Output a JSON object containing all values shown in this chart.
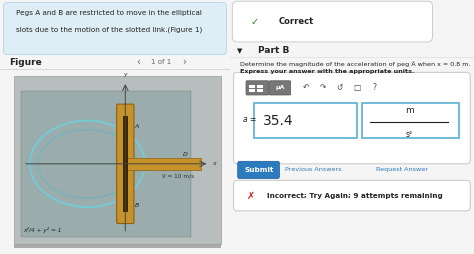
{
  "problem_text_line1": "Pegs A and B are restricted to move in the elliptical",
  "problem_text_line2": "slots due to the motion of the slotted link.(Figure 1)",
  "figure_label": "Figure",
  "figure_nav": "1 of 1",
  "correct_text": "Correct",
  "part_b_text": "Part B",
  "part_b_desc": "Determine the magnitude of the acceleration of peg Ä when x = 0.8 m.",
  "express_text": "Express your answer with the appropriate units.",
  "answer_value": "35.4",
  "unit_numerator": "m",
  "unit_denominator": "s²",
  "submit_text": "Submit",
  "prev_answers_text": "Previous Answers",
  "request_answer_text": "Request Answer",
  "incorrect_text": "Incorrect; Try Again; 9 attempts remaining",
  "velocity_label": "v̅ = 10 m/s",
  "ellipse_eq": "x²/4 + y² = 1",
  "toolbar_symbols": [
    "↺",
    "↻",
    "↺",
    "■",
    "?"
  ],
  "left_bg": "#f0f0f0",
  "right_bg": "#f5f5f5",
  "problem_box_bg": "#ddeef6",
  "problem_box_edge": "#b8d4e8",
  "figure_box_bg": "#b8bebe",
  "figure_inner_bg": "#9aacac",
  "ellipse_color": "#78c8d2",
  "rod_color": "#c8922a",
  "rod_edge": "#8b6010",
  "slot_dark": "#3a2800",
  "correct_box_bg": "#ffffff",
  "correct_box_edge": "#cccccc",
  "check_color": "#2a7a2a",
  "part_b_bg": "#f0f0f0",
  "answer_outer_bg": "#ffffff",
  "answer_outer_edge": "#cccccc",
  "answer_box_edge": "#5ab0d0",
  "submit_bg": "#2d7bbf",
  "submit_edge": "#1a5a9a",
  "incorr_bg": "#ffffff",
  "incorr_edge": "#cccccc",
  "incorr_x_color": "#cc2222",
  "text_dark": "#222222",
  "text_mid": "#444444",
  "text_blue": "#2d7bbf",
  "text_gray": "#666666"
}
